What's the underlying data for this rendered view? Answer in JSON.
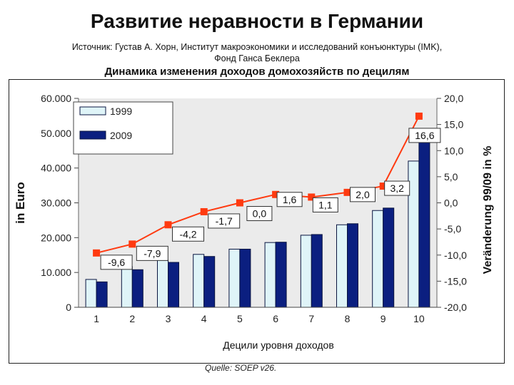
{
  "header": {
    "title": "Развитие неравности в Германии",
    "source_line1": "Источник: Густав А. Хорн, Институт макроэкономики и исследований конъюнктуры (IMK),",
    "source_line2": "Фонд Ганса Беклера",
    "subtitle": "Динамика изменения доходов домохозяйств по децилям"
  },
  "footer": {
    "quelle": "Quelle: SOEP v26."
  },
  "colors": {
    "bar_1999": "#dff4f8",
    "bar_2009": "#0b1f80",
    "line": "#ff3a10",
    "plot_bg": "#ebebeb"
  },
  "chart_data": {
    "type": "bar",
    "categories": [
      "1",
      "2",
      "3",
      "4",
      "5",
      "6",
      "7",
      "8",
      "9",
      "10"
    ],
    "series": [
      {
        "name": "1999",
        "values": [
          8000,
          11700,
          13500,
          15200,
          16700,
          18600,
          20700,
          23700,
          27800,
          42000
        ]
      },
      {
        "name": "2009",
        "values": [
          7300,
          10800,
          12900,
          14600,
          16700,
          18700,
          20900,
          24000,
          28500,
          48600
        ]
      }
    ],
    "line_series": {
      "values": [
        -9.6,
        -7.9,
        -4.2,
        -1.7,
        0.0,
        1.6,
        1.1,
        2.0,
        3.2,
        16.6
      ],
      "labels": [
        "-9,6",
        "-7,9",
        "-4,2",
        "-1,7",
        "0,0",
        "1,6",
        "1,1",
        "2,0",
        "3,2",
        "16,6"
      ]
    },
    "xlabel": "Децили уровня доходов",
    "ylabel": "in Euro",
    "y2label": "Veränderung 99/09 in %",
    "ylim": [
      0,
      60000
    ],
    "y2lim": [
      -20,
      20
    ],
    "yticks": [
      0,
      10000,
      20000,
      30000,
      40000,
      50000,
      60000
    ],
    "yticklabels": [
      "0",
      "10.000",
      "20.000",
      "30.000",
      "40.000",
      "50.000",
      "60.000"
    ],
    "y2ticks": [
      -20,
      -15,
      -10,
      -5,
      0,
      5,
      10,
      15,
      20
    ],
    "y2ticklabels": [
      "-20,0",
      "-15,0",
      "-10,0",
      "-5,0",
      "0,0",
      "5,0",
      "10,0",
      "15,0",
      "20,0"
    ],
    "legend_position": "top-left",
    "grid": false
  }
}
